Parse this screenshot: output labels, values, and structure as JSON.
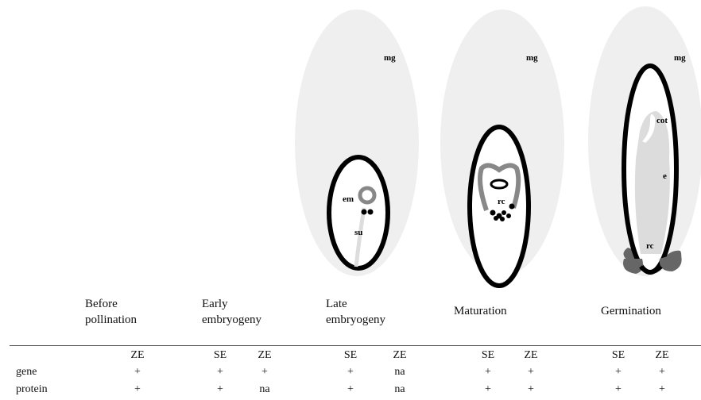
{
  "stages": [
    "Before pollination",
    "Early embryogeny",
    "Late embryogeny",
    "Maturation",
    "Germination"
  ],
  "figures": [
    {
      "labels": [
        "mg",
        "em",
        "su"
      ]
    },
    {
      "labels": [
        "mg",
        "rc"
      ]
    },
    {
      "labels": [
        "mg",
        "cot",
        "e",
        "rc"
      ]
    }
  ],
  "table": {
    "columns": [
      "ZE",
      "SE",
      "ZE",
      "SE",
      "ZE",
      "SE",
      "ZE",
      "SE",
      "ZE"
    ],
    "rows": [
      [
        "gene",
        "+",
        "+",
        "+",
        "+",
        "na",
        "+",
        "+",
        "+",
        "+"
      ],
      [
        "protein",
        "+",
        "+",
        "na",
        "+",
        "na",
        "+",
        "+",
        "+",
        "+"
      ]
    ]
  }
}
